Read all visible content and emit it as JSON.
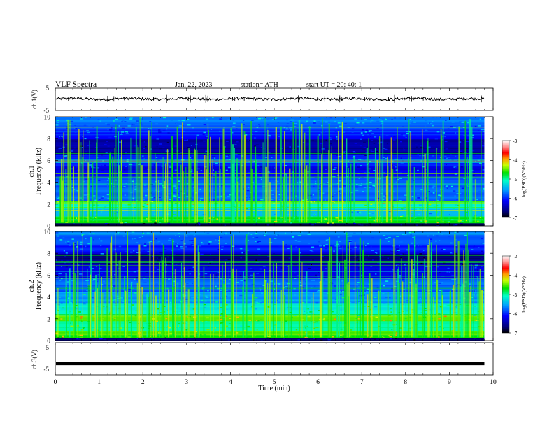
{
  "header": {
    "title": "VLF  Spectra",
    "date": "Jan. 22, 2023",
    "station": "station= ATH",
    "start": "start  UT  =    20: 40: 1"
  },
  "chart_data": [
    {
      "type": "line",
      "panel": "ch1-waveform",
      "ylabel": "ch.1(V)",
      "ylim": [
        -5,
        5
      ],
      "yticks": [
        "5",
        "-5"
      ],
      "trace_level": 0.2,
      "trace_amplitude": 0.6
    },
    {
      "type": "heatmap",
      "panel": "ch1-spectrogram",
      "ylabel": "ch.1\nFrequency  (kHz)",
      "ylabel_line1": "ch.1",
      "ylabel_line2": "Frequency  (kHz)",
      "ylim": [
        0,
        10
      ],
      "yticks": [
        "0",
        "2",
        "4",
        "6",
        "8",
        "10"
      ],
      "colorbar": {
        "label": "log(PSD)(V²/Hz)",
        "range": [
          -7,
          -3
        ],
        "ticks": [
          "-3",
          "-4",
          "-5",
          "-6",
          "-7"
        ]
      }
    },
    {
      "type": "heatmap",
      "panel": "ch2-spectrogram",
      "ylabel_line1": "ch.2",
      "ylabel_line2": "Frequency  (kHz)",
      "ylim": [
        0,
        10
      ],
      "yticks": [
        "0",
        "2",
        "4",
        "6",
        "8",
        "10"
      ],
      "colorbar": {
        "label": "log(PSD)(V²/Hz)",
        "range": [
          -7,
          -3
        ],
        "ticks": [
          "-3",
          "-4",
          "-5",
          "-6",
          "-7"
        ]
      }
    },
    {
      "type": "line",
      "panel": "ch3-waveform",
      "ylabel": "ch.3(V)",
      "ylim": [
        -5,
        5
      ],
      "yticks": [
        "5",
        "-5"
      ],
      "trace_level": -1.5
    }
  ],
  "xaxis": {
    "label": "Time  (min)",
    "range": [
      0,
      10
    ],
    "ticks": [
      "0",
      "1",
      "2",
      "3",
      "4",
      "5",
      "6",
      "7",
      "8",
      "9",
      "10"
    ],
    "data_end_min": 9.8
  },
  "colorbar_label": "log(PSD)(V²/Hz)"
}
